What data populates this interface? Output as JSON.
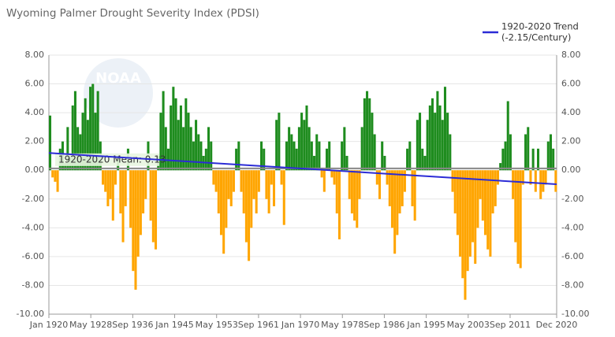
{
  "chart_data": {
    "type": "bar",
    "title": "Wyoming Palmer Drought Severity Index (PDSI)",
    "logo_text": "NOAA",
    "positive_color": "#1e8c1e",
    "negative_color": "#ffa500",
    "grid": true,
    "legend_position": "top-right",
    "mean": 0.13,
    "mean_label": "1920-2020 Mean: 0.13",
    "xlim": [
      1920,
      2020.917
    ],
    "xticks": [
      {
        "value": 1920,
        "label": "Jan 1920"
      },
      {
        "value": 1928.333,
        "label": "May 1928"
      },
      {
        "value": 1936.667,
        "label": "Sep 1936"
      },
      {
        "value": 1945,
        "label": "Jan 1945"
      },
      {
        "value": 1953.333,
        "label": "May 1953"
      },
      {
        "value": 1961.667,
        "label": "Sep 1961"
      },
      {
        "value": 1970,
        "label": "Jan 1970"
      },
      {
        "value": 1978.333,
        "label": "May 1978"
      },
      {
        "value": 1986.667,
        "label": "Sep 1986"
      },
      {
        "value": 1995,
        "label": "Jan 1995"
      },
      {
        "value": 2003.333,
        "label": "May 2003"
      },
      {
        "value": 2011.667,
        "label": "Sep 2011"
      },
      {
        "value": 2020.917,
        "label": "Dec 2020"
      }
    ],
    "ylim": [
      -10,
      8
    ],
    "yticks": [
      {
        "value": 8,
        "label": "8.00"
      },
      {
        "value": 6,
        "label": "6.00"
      },
      {
        "value": 4,
        "label": "4.00"
      },
      {
        "value": 2,
        "label": "2.00"
      },
      {
        "value": 0,
        "label": "0.00"
      },
      {
        "value": -2,
        "label": "-2.00"
      },
      {
        "value": -4,
        "label": "-4.00"
      },
      {
        "value": -6,
        "label": "-6.00"
      },
      {
        "value": -8,
        "label": "-8.00"
      },
      {
        "value": -10,
        "label": "-10.00"
      }
    ],
    "x": [
      1920,
      1920.5,
      1921,
      1921.5,
      1922,
      1922.5,
      1923,
      1923.5,
      1924,
      1924.5,
      1925,
      1925.5,
      1926,
      1926.5,
      1927,
      1927.5,
      1928,
      1928.5,
      1929,
      1929.5,
      1930,
      1930.5,
      1931,
      1931.5,
      1932,
      1932.5,
      1933,
      1933.5,
      1934,
      1934.5,
      1935,
      1935.5,
      1936,
      1936.5,
      1937,
      1937.5,
      1938,
      1938.5,
      1939,
      1939.5,
      1940,
      1940.5,
      1941,
      1941.5,
      1942,
      1942.5,
      1943,
      1943.5,
      1944,
      1944.5,
      1945,
      1945.5,
      1946,
      1946.5,
      1947,
      1947.5,
      1948,
      1948.5,
      1949,
      1949.5,
      1950,
      1950.5,
      1951,
      1951.5,
      1952,
      1952.5,
      1953,
      1953.5,
      1954,
      1954.5,
      1955,
      1955.5,
      1956,
      1956.5,
      1957,
      1957.5,
      1958,
      1958.5,
      1959,
      1959.5,
      1960,
      1960.5,
      1961,
      1961.5,
      1962,
      1962.5,
      1963,
      1963.5,
      1964,
      1964.5,
      1965,
      1965.5,
      1966,
      1966.5,
      1967,
      1967.5,
      1968,
      1968.5,
      1969,
      1969.5,
      1970,
      1970.5,
      1971,
      1971.5,
      1972,
      1972.5,
      1973,
      1973.5,
      1974,
      1974.5,
      1975,
      1975.5,
      1976,
      1976.5,
      1977,
      1977.5,
      1978,
      1978.5,
      1979,
      1979.5,
      1980,
      1980.5,
      1981,
      1981.5,
      1982,
      1982.5,
      1983,
      1983.5,
      1984,
      1984.5,
      1985,
      1985.5,
      1986,
      1986.5,
      1987,
      1987.5,
      1988,
      1988.5,
      1989,
      1989.5,
      1990,
      1990.5,
      1991,
      1991.5,
      1992,
      1992.5,
      1993,
      1993.5,
      1994,
      1994.5,
      1995,
      1995.5,
      1996,
      1996.5,
      1997,
      1997.5,
      1998,
      1998.5,
      1999,
      1999.5,
      2000,
      2000.5,
      2001,
      2001.5,
      2002,
      2002.5,
      2003,
      2003.5,
      2004,
      2004.5,
      2005,
      2005.5,
      2006,
      2006.5,
      2007,
      2007.5,
      2008,
      2008.5,
      2009,
      2009.5,
      2010,
      2010.5,
      2011,
      2011.5,
      2012,
      2012.5,
      2013,
      2013.5,
      2014,
      2014.5,
      2015,
      2015.5,
      2016,
      2016.5,
      2017,
      2017.5,
      2018,
      2018.5,
      2019,
      2019.5,
      2020,
      2020.5
    ],
    "values": [
      3.8,
      -0.5,
      -0.8,
      -1.5,
      1.5,
      2.0,
      0.5,
      3.0,
      1.0,
      4.5,
      5.5,
      3.0,
      2.5,
      4.0,
      5.0,
      3.5,
      5.8,
      6.0,
      4.0,
      5.5,
      2.0,
      -1.0,
      -1.5,
      -2.5,
      -2.0,
      -3.5,
      -1.0,
      1.0,
      -3.0,
      -5.0,
      -2.5,
      1.5,
      -4.0,
      -7.0,
      -8.3,
      -6.0,
      -4.5,
      -3.0,
      -2.0,
      2.0,
      -3.5,
      -5.0,
      -5.5,
      1.0,
      4.0,
      5.5,
      3.0,
      1.5,
      4.5,
      5.8,
      5.0,
      3.5,
      4.5,
      3.0,
      5.0,
      4.0,
      3.0,
      2.0,
      3.5,
      2.5,
      2.0,
      1.0,
      1.5,
      3.0,
      2.0,
      -1.0,
      -1.5,
      -3.0,
      -4.5,
      -5.8,
      -4.0,
      -2.0,
      -2.5,
      -1.5,
      1.5,
      2.0,
      -1.5,
      -3.0,
      -5.0,
      -6.3,
      -4.0,
      -2.0,
      -3.0,
      -1.5,
      2.0,
      1.5,
      -2.0,
      -3.0,
      -1.0,
      -2.5,
      3.5,
      4.0,
      -1.0,
      -3.8,
      2.0,
      3.0,
      2.5,
      2.0,
      1.5,
      3.0,
      4.0,
      3.5,
      4.5,
      3.0,
      2.0,
      1.0,
      2.5,
      2.0,
      -0.5,
      -1.5,
      1.5,
      2.0,
      -0.5,
      -1.0,
      -3.0,
      -4.8,
      2.0,
      3.0,
      1.0,
      -2.0,
      -3.0,
      -3.5,
      -4.0,
      -2.0,
      3.0,
      5.0,
      5.5,
      5.0,
      4.0,
      2.5,
      -1.0,
      -2.0,
      2.0,
      1.0,
      -1.0,
      -2.5,
      -4.0,
      -5.8,
      -4.5,
      -3.0,
      -2.5,
      -1.5,
      1.5,
      2.0,
      -2.5,
      -3.5,
      3.5,
      4.0,
      1.5,
      1.0,
      3.5,
      4.5,
      5.0,
      4.0,
      5.5,
      4.5,
      3.5,
      5.8,
      4.0,
      2.5,
      -1.5,
      -3.0,
      -4.5,
      -6.0,
      -7.5,
      -9.0,
      -7.0,
      -6.0,
      -5.0,
      -6.5,
      -4.0,
      -2.0,
      -3.5,
      -4.5,
      -5.5,
      -6.0,
      -3.0,
      -2.5,
      -1.0,
      0.5,
      1.5,
      2.0,
      4.8,
      2.5,
      -2.0,
      -5.0,
      -6.5,
      -6.8,
      -1.0,
      2.5,
      3.0,
      -1.0,
      1.5,
      -1.5,
      1.5,
      -2.0,
      -1.5,
      -1.0,
      2.0,
      2.5,
      1.5,
      -1.5
    ],
    "trend": {
      "name": "1920-2020 Trend",
      "note": "(-2.15/Century)",
      "color": "#2b2bd6",
      "x": [
        1920,
        2020.917
      ],
      "values": [
        1.2,
        -0.97
      ]
    }
  }
}
